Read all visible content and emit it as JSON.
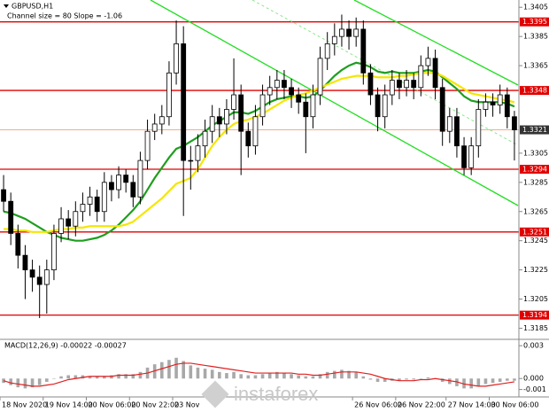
{
  "watermark": "instaforex",
  "chart_data": [
    {
      "type": "candlestick",
      "title": "GBPUSD,H1",
      "subtitle": "Channel size = 80 Slope = -1.06",
      "categories": [
        "18 Nov 2020",
        null,
        null,
        null,
        null,
        null,
        "19 Nov 14:00",
        null,
        null,
        null,
        null,
        null,
        "20 Nov 06:00",
        null,
        null,
        null,
        null,
        null,
        "20 Nov 22:00",
        null,
        null,
        null,
        null,
        null,
        "23 Nov",
        null,
        null,
        null,
        null,
        null,
        null,
        null,
        null,
        null,
        null,
        null,
        null,
        null,
        null,
        null,
        null,
        null,
        null,
        null,
        null,
        null,
        null,
        null,
        null,
        "26 Nov 06:00",
        null,
        null,
        null,
        null,
        null,
        "26 Nov 22:00",
        null,
        null,
        null,
        null,
        null,
        null,
        "27 Nov 14:00",
        null,
        null,
        null,
        null,
        null,
        "30 Nov 06:00",
        null,
        null,
        null
      ],
      "open": [
        1.328,
        1.3272,
        1.325,
        1.3235,
        1.3225,
        1.322,
        1.3215,
        1.3225,
        1.325,
        1.326,
        1.3255,
        1.3265,
        1.327,
        1.3275,
        1.3265,
        1.3285,
        1.328,
        1.329,
        1.3285,
        1.3275,
        1.33,
        1.332,
        1.3325,
        1.333,
        1.336,
        1.338,
        1.33,
        1.33,
        1.331,
        1.332,
        1.333,
        1.3325,
        1.3335,
        1.3345,
        1.332,
        1.331,
        1.333,
        1.3345,
        1.335,
        1.3355,
        1.335,
        1.3345,
        1.334,
        1.333,
        1.3345,
        1.337,
        1.338,
        1.3385,
        1.339,
        1.3385,
        1.339,
        1.336,
        1.3345,
        1.333,
        1.3345,
        1.3355,
        1.335,
        1.3355,
        1.335,
        1.3365,
        1.337,
        1.335,
        1.332,
        1.333,
        1.331,
        1.3295,
        1.331,
        1.3335,
        1.334,
        1.3338,
        1.3345,
        1.333
      ],
      "high": [
        1.329,
        1.3278,
        1.3256,
        1.3242,
        1.3232,
        1.3228,
        1.3232,
        1.3256,
        1.3268,
        1.3266,
        1.3272,
        1.3278,
        1.3282,
        1.328,
        1.3292,
        1.329,
        1.3296,
        1.3294,
        1.329,
        1.3306,
        1.3328,
        1.3332,
        1.3338,
        1.3368,
        1.3396,
        1.3392,
        1.331,
        1.3318,
        1.3328,
        1.3338,
        1.3336,
        1.3342,
        1.337,
        1.3352,
        1.3326,
        1.3338,
        1.3352,
        1.3358,
        1.3362,
        1.3362,
        1.3356,
        1.335,
        1.3346,
        1.3352,
        1.3378,
        1.3388,
        1.3394,
        1.34,
        1.3396,
        1.3398,
        1.3396,
        1.3366,
        1.335,
        1.3352,
        1.3362,
        1.336,
        1.3362,
        1.336,
        1.3372,
        1.3378,
        1.3376,
        1.3356,
        1.3336,
        1.3336,
        1.3316,
        1.3316,
        1.3342,
        1.3346,
        1.3346,
        1.3352,
        1.335,
        1.3334
      ],
      "low": [
        1.3265,
        1.3242,
        1.3226,
        1.3205,
        1.321,
        1.3192,
        1.3195,
        1.3218,
        1.3244,
        1.3246,
        1.3248,
        1.3258,
        1.3262,
        1.3258,
        1.3258,
        1.3272,
        1.3274,
        1.3278,
        1.3268,
        1.327,
        1.3294,
        1.3314,
        1.3318,
        1.3324,
        1.3352,
        1.3262,
        1.328,
        1.3292,
        1.3302,
        1.3312,
        1.3316,
        1.3318,
        1.3328,
        1.329,
        1.3302,
        1.3304,
        1.3324,
        1.3338,
        1.3342,
        1.3342,
        1.3336,
        1.3332,
        1.3305,
        1.3322,
        1.3338,
        1.3362,
        1.3372,
        1.3378,
        1.3376,
        1.3378,
        1.3352,
        1.3338,
        1.332,
        1.3322,
        1.3338,
        1.3342,
        1.3344,
        1.3342,
        1.3344,
        1.3358,
        1.3342,
        1.331,
        1.3312,
        1.3302,
        1.329,
        1.329,
        1.3302,
        1.333,
        1.333,
        1.3332,
        1.3322,
        1.33
      ],
      "close": [
        1.3272,
        1.325,
        1.3235,
        1.3225,
        1.322,
        1.3215,
        1.3225,
        1.325,
        1.326,
        1.3255,
        1.3265,
        1.327,
        1.3275,
        1.3265,
        1.3285,
        1.328,
        1.329,
        1.3285,
        1.3275,
        1.33,
        1.332,
        1.3325,
        1.333,
        1.336,
        1.338,
        1.33,
        1.33,
        1.331,
        1.332,
        1.333,
        1.3325,
        1.3335,
        1.3345,
        1.332,
        1.331,
        1.333,
        1.3345,
        1.335,
        1.3355,
        1.335,
        1.3345,
        1.334,
        1.333,
        1.3345,
        1.337,
        1.338,
        1.3385,
        1.339,
        1.3385,
        1.339,
        1.336,
        1.3345,
        1.333,
        1.3345,
        1.3355,
        1.335,
        1.3355,
        1.335,
        1.3365,
        1.337,
        1.335,
        1.332,
        1.333,
        1.331,
        1.3295,
        1.331,
        1.3335,
        1.334,
        1.3338,
        1.3345,
        1.333,
        1.3321
      ],
      "moving_averages": [
        {
          "color": "#1f9e1f",
          "values": [
            1.3265,
            1.3264,
            1.3262,
            1.326,
            1.3257,
            1.3254,
            1.3251,
            1.3249,
            1.3247,
            1.3246,
            1.3245,
            1.3245,
            1.3246,
            1.3247,
            1.3249,
            1.3252,
            1.3256,
            1.3261,
            1.3266,
            1.3272,
            1.328,
            1.3288,
            1.3295,
            1.3302,
            1.3308,
            1.331,
            1.3313,
            1.3316,
            1.332,
            1.3324,
            1.3327,
            1.333,
            1.3333,
            1.3333,
            1.3332,
            1.3334,
            1.3337,
            1.334,
            1.3342,
            1.3343,
            1.3344,
            1.3344,
            1.3343,
            1.3344,
            1.3348,
            1.3353,
            1.3358,
            1.3362,
            1.3365,
            1.3367,
            1.3366,
            1.3364,
            1.3361,
            1.336,
            1.3361,
            1.336,
            1.336,
            1.336,
            1.3361,
            1.3362,
            1.3361,
            1.3357,
            1.3353,
            1.3349,
            1.3344,
            1.3341,
            1.334,
            1.334,
            1.334,
            1.334,
            1.3339,
            1.3337
          ]
        },
        {
          "color": "#f5e600",
          "values": [
            1.3253,
            1.3253,
            1.3252,
            1.3252,
            1.3251,
            1.3251,
            1.3251,
            1.3252,
            1.3253,
            1.3253,
            1.3254,
            1.3254,
            1.3255,
            1.3255,
            1.3255,
            1.3255,
            1.3255,
            1.3256,
            1.3258,
            1.3262,
            1.3266,
            1.327,
            1.3274,
            1.3279,
            1.3284,
            1.3286,
            1.3288,
            1.3294,
            1.3302,
            1.331,
            1.3316,
            1.3321,
            1.3325,
            1.3327,
            1.3328,
            1.333,
            1.3332,
            1.3335,
            1.3338,
            1.3341,
            1.3343,
            1.3345,
            1.3346,
            1.3348,
            1.335,
            1.3352,
            1.3354,
            1.3356,
            1.3357,
            1.3358,
            1.3358,
            1.3358,
            1.3357,
            1.3357,
            1.3357,
            1.3358,
            1.3358,
            1.3359,
            1.336,
            1.336,
            1.336,
            1.3358,
            1.3355,
            1.3352,
            1.3349,
            1.3346,
            1.3345,
            1.3344,
            1.3343,
            1.3342,
            1.3341,
            1.334
          ]
        }
      ],
      "levels": {
        "color": "#e00000",
        "values": [
          1.3395,
          1.3348,
          1.3294,
          1.3251,
          1.3194
        ]
      },
      "price": 1.3321,
      "ylim": [
        1.3178,
        1.341
      ],
      "yticks": [
        1.3405,
        1.3385,
        1.3365,
        1.3305,
        1.3285,
        1.3265,
        1.3245,
        1.3225,
        1.3205,
        1.3185
      ]
    },
    {
      "type": "macd",
      "title": "MACD(12,26,9) -0.00022 -0.00027",
      "values": [
        -0.0004,
        -0.0006,
        -0.0008,
        -0.0009,
        -0.0008,
        -0.0006,
        -0.0003,
        0.0,
        0.0002,
        0.0003,
        0.0003,
        0.0003,
        0.0002,
        0.0002,
        0.0002,
        0.0003,
        0.0004,
        0.0004,
        0.0004,
        0.0006,
        0.001,
        0.0013,
        0.0015,
        0.0017,
        0.0019,
        0.0016,
        0.0012,
        0.001,
        0.0009,
        0.0008,
        0.0006,
        0.0005,
        0.0006,
        0.0004,
        0.0003,
        0.0003,
        0.0004,
        0.0005,
        0.0006,
        0.0005,
        0.0004,
        0.0003,
        0.0002,
        0.0002,
        0.0004,
        0.0006,
        0.0007,
        0.0008,
        0.0007,
        0.0006,
        0.0002,
        -0.0001,
        -0.0003,
        -0.0003,
        -0.0002,
        -0.0002,
        -0.0001,
        -0.0001,
        0.0,
        0.0001,
        0.0,
        -0.0003,
        -0.0005,
        -0.0007,
        -0.0009,
        -0.0009,
        -0.0007,
        -0.0005,
        -0.0004,
        -0.0003,
        -0.0002,
        -0.0002
      ],
      "color": "#a8a8a8",
      "signal": {
        "color": "#e02020",
        "values": [
          -0.0002,
          -0.0004,
          -0.0005,
          -0.0006,
          -0.0007,
          -0.0007,
          -0.0006,
          -0.0005,
          -0.0003,
          -0.0001,
          0.0,
          0.0001,
          0.0002,
          0.0002,
          0.0002,
          0.0002,
          0.0003,
          0.0003,
          0.0003,
          0.0004,
          0.0005,
          0.0007,
          0.0009,
          0.0011,
          0.0013,
          0.0014,
          0.0014,
          0.0013,
          0.0012,
          0.0011,
          0.001,
          0.0009,
          0.0008,
          0.0007,
          0.0006,
          0.0005,
          0.0005,
          0.0005,
          0.0005,
          0.0005,
          0.0005,
          0.0004,
          0.0004,
          0.0003,
          0.0003,
          0.0004,
          0.0005,
          0.0006,
          0.0006,
          0.0006,
          0.0005,
          0.0004,
          0.0002,
          0.0,
          -0.0001,
          -0.0002,
          -0.0002,
          -0.0002,
          -0.0001,
          -0.0001,
          0.0,
          -0.0001,
          -0.0002,
          -0.0003,
          -0.0005,
          -0.0006,
          -0.0007,
          -0.0007,
          -0.0006,
          -0.0005,
          -0.0004,
          -0.0003
        ]
      },
      "ylim": [
        -0.0016,
        0.0035
      ],
      "yticks": [
        0.003,
        {
          "value": 0,
          "label": "0.000"
        },
        -0.001
      ]
    }
  ]
}
